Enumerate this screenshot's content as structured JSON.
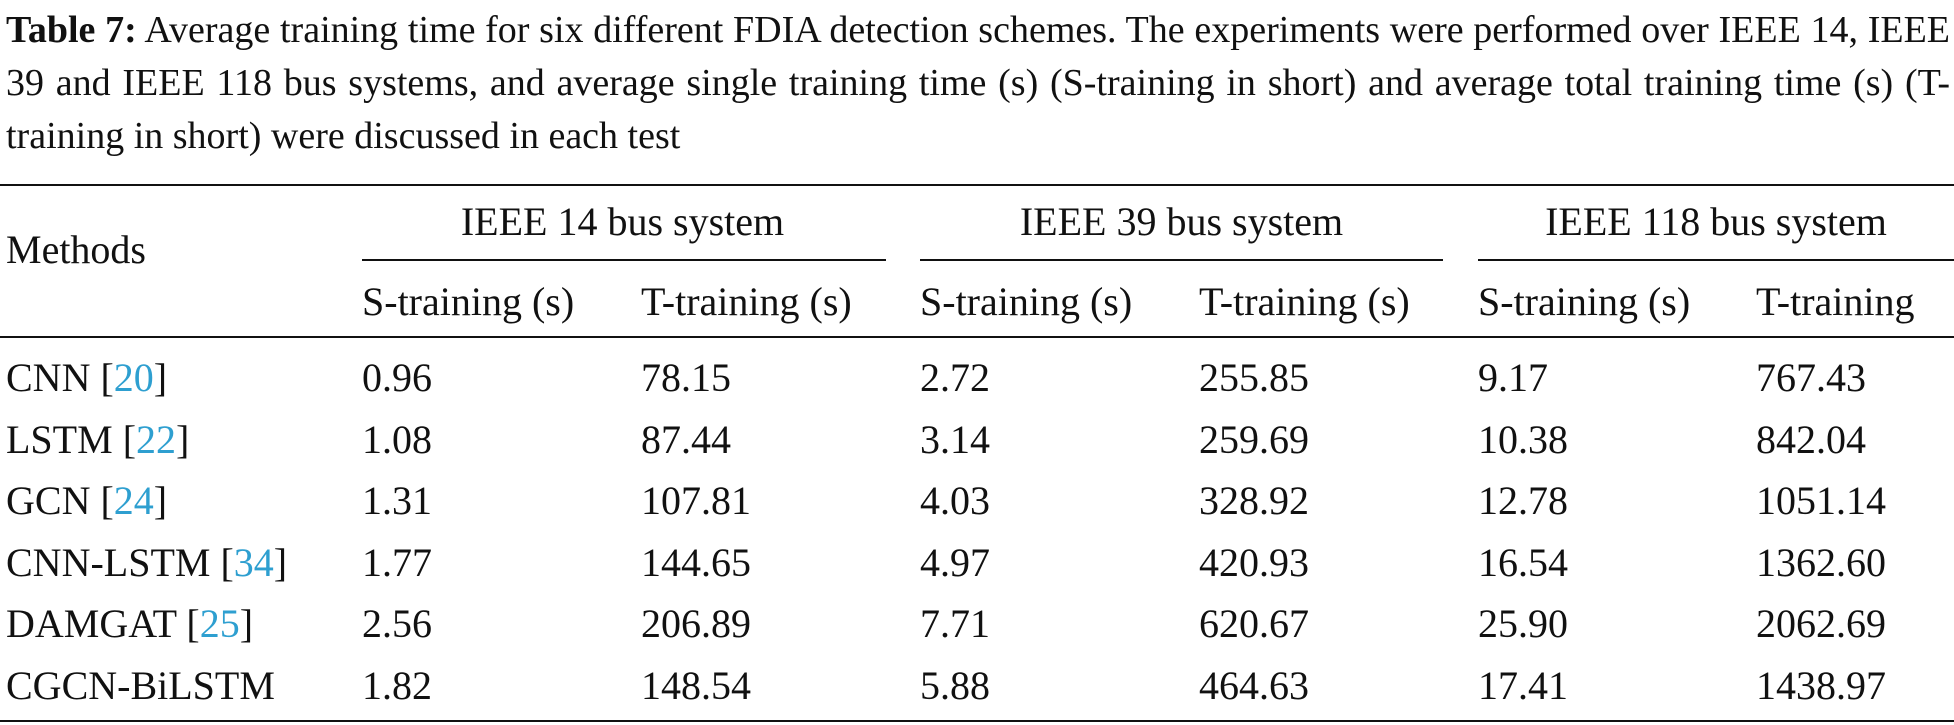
{
  "caption": {
    "label": "Table 7:",
    "text": "Average training time for six different FDIA detection schemes. The experiments were performed over IEEE 14, IEEE 39 and IEEE 118 bus systems, and average single training time (s) (S-training in short) and average total training time (s) (T-training in short) were discussed in each test"
  },
  "table": {
    "method_header": "Methods",
    "groups": [
      "IEEE 14 bus system",
      "IEEE 39 bus system",
      "IEEE 118 bus system"
    ],
    "subheaders": [
      "S-training (s)",
      "T-training (s)",
      "S-training (s)",
      "T-training (s)",
      "S-training (s)",
      "T-training"
    ],
    "rows": [
      {
        "method": "CNN",
        "ref": "20",
        "values": [
          "0.96",
          "78.15",
          "2.72",
          "255.85",
          "9.17",
          "767.43"
        ]
      },
      {
        "method": "LSTM",
        "ref": "22",
        "values": [
          "1.08",
          "87.44",
          "3.14",
          "259.69",
          "10.38",
          "842.04"
        ]
      },
      {
        "method": "GCN",
        "ref": "24",
        "values": [
          "1.31",
          "107.81",
          "4.03",
          "328.92",
          "12.78",
          "1051.14"
        ]
      },
      {
        "method": "CNN-LSTM",
        "ref": "34",
        "values": [
          "1.77",
          "144.65",
          "4.97",
          "420.93",
          "16.54",
          "1362.60"
        ]
      },
      {
        "method": "DAMGAT",
        "ref": "25",
        "values": [
          "2.56",
          "206.89",
          "7.71",
          "620.67",
          "25.90",
          "2062.69"
        ]
      },
      {
        "method": "CGCN-BiLSTM",
        "ref": "",
        "values": [
          "1.82",
          "148.54",
          "5.88",
          "464.63",
          "17.41",
          "1438.97"
        ]
      }
    ]
  }
}
